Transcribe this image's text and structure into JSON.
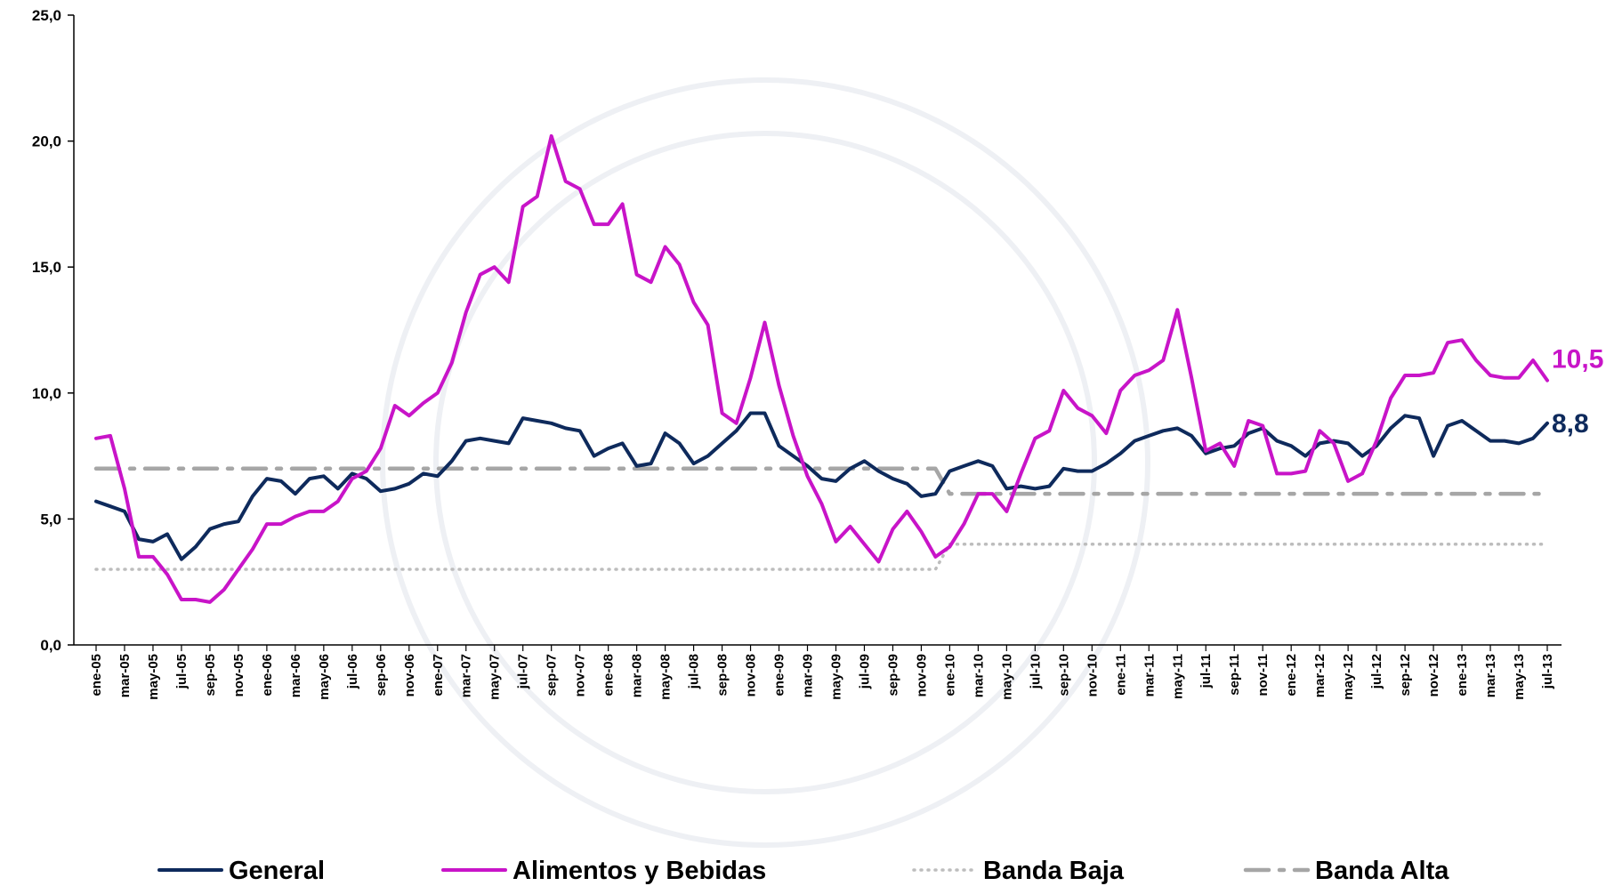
{
  "chart_data": {
    "type": "line",
    "categories": [
      "ene-05",
      null,
      "mar-05",
      null,
      "may-05",
      null,
      "jul-05",
      null,
      "sep-05",
      null,
      "nov-05",
      null,
      "ene-06",
      null,
      "mar-06",
      null,
      "may-06",
      null,
      "jul-06",
      null,
      "sep-06",
      null,
      "nov-06",
      null,
      "ene-07",
      null,
      "mar-07",
      null,
      "may-07",
      null,
      "jul-07",
      null,
      "sep-07",
      null,
      "nov-07",
      null,
      "ene-08",
      null,
      "mar-08",
      null,
      "may-08",
      null,
      "jul-08",
      null,
      "sep-08",
      null,
      "nov-08",
      null,
      "ene-09",
      null,
      "mar-09",
      null,
      "may-09",
      null,
      "jul-09",
      null,
      "sep-09",
      null,
      "nov-09",
      null,
      "ene-10",
      null,
      "mar-10",
      null,
      "may-10",
      null,
      "jul-10",
      null,
      "sep-10",
      null,
      "nov-10",
      null,
      "ene-11",
      null,
      "mar-11",
      null,
      "may-11",
      null,
      "jul-11",
      null,
      "sep-11",
      null,
      "nov-11",
      null,
      "ene-12",
      null,
      "mar-12",
      null,
      "may-12",
      null,
      "jul-12",
      null,
      "sep-12",
      null,
      "nov-12",
      null,
      "ene-13",
      null,
      "mar-13",
      null,
      "may-13",
      null,
      "jul-13"
    ],
    "series": [
      {
        "name": "General",
        "color": "#0e2a5c",
        "style": "solid",
        "values": [
          5.7,
          5.5,
          5.3,
          4.2,
          4.1,
          4.4,
          3.4,
          3.9,
          4.6,
          4.8,
          4.9,
          5.9,
          6.6,
          6.5,
          6.0,
          6.6,
          6.7,
          6.2,
          6.8,
          6.6,
          6.1,
          6.2,
          6.4,
          6.8,
          6.7,
          7.3,
          8.1,
          8.2,
          8.1,
          8.0,
          9.0,
          8.9,
          8.8,
          8.6,
          8.5,
          7.5,
          7.8,
          8.0,
          7.1,
          7.2,
          8.4,
          8.0,
          7.2,
          7.5,
          8.0,
          8.5,
          9.2,
          9.2,
          7.9,
          7.5,
          7.1,
          6.6,
          6.5,
          7.0,
          7.3,
          6.9,
          6.6,
          6.4,
          5.9,
          6.0,
          6.9,
          7.1,
          7.3,
          7.1,
          6.2,
          6.3,
          6.2,
          6.3,
          7.0,
          6.9,
          6.9,
          7.2,
          7.6,
          8.1,
          8.3,
          8.5,
          8.6,
          8.3,
          7.6,
          7.8,
          7.9,
          8.4,
          8.6,
          8.1,
          7.9,
          7.5,
          8.0,
          8.1,
          8.0,
          7.5,
          7.9,
          8.6,
          9.1,
          9.0,
          7.5,
          8.7,
          8.9,
          8.5,
          8.1,
          8.1,
          8.0,
          8.2,
          8.8
        ],
        "value_labels": [
          null,
          null,
          null,
          null,
          null,
          null,
          null,
          null,
          null,
          null,
          null,
          null,
          null,
          null,
          null,
          null,
          null,
          null,
          null,
          null,
          null,
          null,
          null,
          null,
          null,
          null,
          null,
          null,
          null,
          null,
          null,
          null,
          null,
          null,
          null,
          null,
          null,
          null,
          null,
          null,
          null,
          null,
          null,
          null,
          null,
          null,
          null,
          null,
          null,
          null,
          null,
          null,
          null,
          null,
          null,
          null,
          null,
          null,
          null,
          null,
          null,
          null,
          null,
          null,
          null,
          null,
          null,
          null,
          null,
          null,
          null,
          null,
          null,
          null,
          null,
          null,
          null,
          null,
          null,
          null,
          null,
          null,
          null,
          null,
          null,
          null,
          null,
          null,
          null,
          null,
          null,
          null,
          null,
          null,
          null,
          null,
          null,
          null,
          null,
          null,
          null,
          null,
          "8,8"
        ]
      },
      {
        "name": "Alimentos y Bebidas",
        "color": "#c814c8",
        "style": "solid",
        "values": [
          8.2,
          8.3,
          6.2,
          3.5,
          3.5,
          2.8,
          1.8,
          1.8,
          1.7,
          2.2,
          3.0,
          3.8,
          4.8,
          4.8,
          5.1,
          5.3,
          5.3,
          5.7,
          6.6,
          6.9,
          7.8,
          9.5,
          9.1,
          9.6,
          10.0,
          11.2,
          13.2,
          14.7,
          15.0,
          14.4,
          17.4,
          17.8,
          20.2,
          18.4,
          18.1,
          16.7,
          16.7,
          17.5,
          14.7,
          14.4,
          15.8,
          15.1,
          13.6,
          12.7,
          9.2,
          8.8,
          10.6,
          12.8,
          10.3,
          8.3,
          6.7,
          5.6,
          4.1,
          4.7,
          4.0,
          3.3,
          4.6,
          5.3,
          4.5,
          3.5,
          3.9,
          4.8,
          6.0,
          6.0,
          5.3,
          6.8,
          8.2,
          8.5,
          10.1,
          9.4,
          9.1,
          8.4,
          10.1,
          10.7,
          10.9,
          11.3,
          13.3,
          10.6,
          7.7,
          8.0,
          7.1,
          8.9,
          8.7,
          6.8,
          6.8,
          6.9,
          8.5,
          8.0,
          6.5,
          6.8,
          8.1,
          9.8,
          10.7,
          10.7,
          10.8,
          12.0,
          12.1,
          11.3,
          10.7,
          10.6,
          10.6,
          11.3,
          10.5
        ],
        "value_labels": [
          null,
          null,
          null,
          null,
          null,
          null,
          null,
          null,
          null,
          null,
          null,
          null,
          null,
          null,
          null,
          null,
          null,
          null,
          null,
          null,
          null,
          null,
          null,
          null,
          null,
          null,
          null,
          null,
          null,
          null,
          null,
          null,
          null,
          null,
          null,
          null,
          null,
          null,
          null,
          null,
          null,
          null,
          null,
          null,
          null,
          null,
          null,
          null,
          null,
          null,
          null,
          null,
          null,
          null,
          null,
          null,
          null,
          null,
          null,
          null,
          null,
          null,
          null,
          null,
          null,
          null,
          null,
          null,
          null,
          null,
          null,
          null,
          null,
          null,
          null,
          null,
          null,
          null,
          null,
          null,
          null,
          null,
          null,
          null,
          null,
          null,
          null,
          null,
          null,
          null,
          null,
          null,
          null,
          null,
          null,
          null,
          null,
          null,
          null,
          null,
          null,
          null,
          "10,5"
        ]
      },
      {
        "name": "Banda Baja",
        "color": "#bdbdbd",
        "style": "dotted",
        "values": [
          3,
          3,
          3,
          3,
          3,
          3,
          3,
          3,
          3,
          3,
          3,
          3,
          3,
          3,
          3,
          3,
          3,
          3,
          3,
          3,
          3,
          3,
          3,
          3,
          3,
          3,
          3,
          3,
          3,
          3,
          3,
          3,
          3,
          3,
          3,
          3,
          3,
          3,
          3,
          3,
          3,
          3,
          3,
          3,
          3,
          3,
          3,
          3,
          3,
          3,
          3,
          3,
          3,
          3,
          3,
          3,
          3,
          3,
          3,
          3,
          4,
          4,
          4,
          4,
          4,
          4,
          4,
          4,
          4,
          4,
          4,
          4,
          4,
          4,
          4,
          4,
          4,
          4,
          4,
          4,
          4,
          4,
          4,
          4,
          4,
          4,
          4,
          4,
          4,
          4,
          4,
          4,
          4,
          4,
          4,
          4,
          4,
          4,
          4,
          4,
          4,
          4,
          4
        ]
      },
      {
        "name": "Banda Alta",
        "color": "#a6a6a6",
        "style": "dashdot",
        "values": [
          7,
          7,
          7,
          7,
          7,
          7,
          7,
          7,
          7,
          7,
          7,
          7,
          7,
          7,
          7,
          7,
          7,
          7,
          7,
          7,
          7,
          7,
          7,
          7,
          7,
          7,
          7,
          7,
          7,
          7,
          7,
          7,
          7,
          7,
          7,
          7,
          7,
          7,
          7,
          7,
          7,
          7,
          7,
          7,
          7,
          7,
          7,
          7,
          7,
          7,
          7,
          7,
          7,
          7,
          7,
          7,
          7,
          7,
          7,
          7,
          6,
          6,
          6,
          6,
          6,
          6,
          6,
          6,
          6,
          6,
          6,
          6,
          6,
          6,
          6,
          6,
          6,
          6,
          6,
          6,
          6,
          6,
          6,
          6,
          6,
          6,
          6,
          6,
          6,
          6,
          6,
          6,
          6,
          6,
          6,
          6,
          6,
          6,
          6,
          6,
          6,
          6,
          6
        ]
      }
    ],
    "ylim": [
      0,
      25
    ],
    "yticks": [
      {
        "value": 0,
        "label": "0,0"
      },
      {
        "value": 5,
        "label": "5,0"
      },
      {
        "value": 10,
        "label": "10,0"
      },
      {
        "value": 15,
        "label": "15,0"
      },
      {
        "value": 20,
        "label": "20,0"
      },
      {
        "value": 25,
        "label": "25,0"
      }
    ],
    "grid": false,
    "legend": "bottom"
  }
}
